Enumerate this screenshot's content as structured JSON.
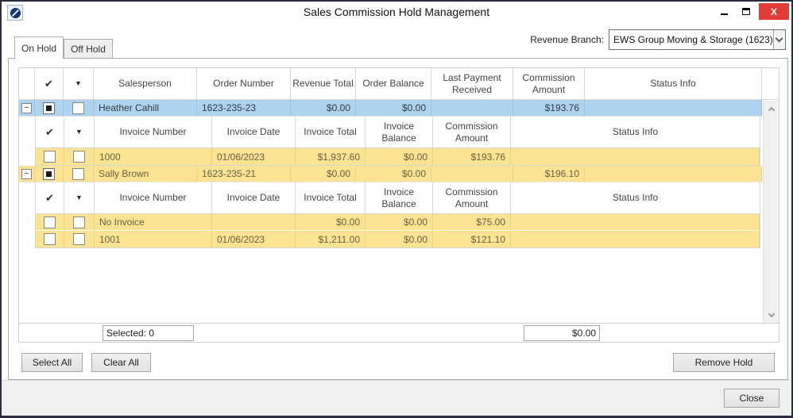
{
  "window": {
    "title": "Sales Commission Hold Management"
  },
  "icons": {
    "check": "✔",
    "filter_arrow": "▼",
    "collapse": "−",
    "close": "X"
  },
  "tabs": [
    {
      "label": "On Hold"
    },
    {
      "label": "Off Hold"
    }
  ],
  "revenue_branch": {
    "label": "Revenue Branch:",
    "value": "EWS Group Moving & Storage (1623)"
  },
  "main_headers": {
    "salesperson": "Salesperson",
    "order_number": "Order Number",
    "revenue_total": "Revenue Total",
    "order_balance": "Order Balance",
    "last_payment": "Last Payment Received",
    "commission": "Commission Amount",
    "status": "Status Info"
  },
  "sub_headers": {
    "invoice_number": "Invoice Number",
    "invoice_date": "Invoice Date",
    "invoice_total": "Invoice Total",
    "invoice_balance": "Invoice Balance",
    "commission": "Commission Amount",
    "status": "Status Info"
  },
  "groups": [
    {
      "salesperson": "Heather Cahill",
      "order_number": "1623-235-23",
      "revenue_total": "$0.00",
      "order_balance": "$0.00",
      "last_payment": "",
      "commission": "$193.76",
      "status": "",
      "invoices": [
        {
          "invoice_number": "1000",
          "invoice_date": "01/06/2023",
          "invoice_total": "$1,937.60",
          "invoice_balance": "$0.00",
          "commission": "$193.76",
          "status": ""
        }
      ]
    },
    {
      "salesperson": "Sally Brown",
      "order_number": "1623-235-21",
      "revenue_total": "$0.00",
      "order_balance": "$0.00",
      "last_payment": "",
      "commission": "$196.10",
      "status": "",
      "invoices": [
        {
          "invoice_number": "No Invoice",
          "invoice_date": "",
          "invoice_total": "$0.00",
          "invoice_balance": "$0.00",
          "commission": "$75.00",
          "status": ""
        },
        {
          "invoice_number": "1001",
          "invoice_date": "01/06/2023",
          "invoice_total": "$1,211.00",
          "invoice_balance": "$0.00",
          "commission": "$121.10",
          "status": ""
        }
      ]
    }
  ],
  "grid_footer": {
    "selected": "Selected: 0",
    "total": "$0.00"
  },
  "buttons": {
    "select_all": "Select All",
    "clear_all": "Clear All",
    "remove_hold": "Remove Hold",
    "close": "Close"
  }
}
